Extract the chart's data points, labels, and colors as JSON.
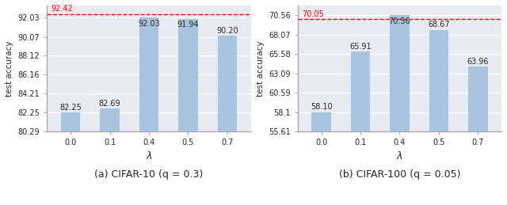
{
  "left": {
    "categories": [
      "0.0",
      "0.1",
      "0.4",
      "0.5",
      "0.7"
    ],
    "values": [
      82.25,
      82.69,
      92.03,
      91.94,
      90.2
    ],
    "hline": 92.42,
    "hline_label": "92.42",
    "ylim": [
      80.29,
      93.3
    ],
    "yticks": [
      80.29,
      82.25,
      84.21,
      86.16,
      88.12,
      90.07,
      92.03
    ],
    "ylabel": "test accuracy",
    "xlabel": "λ",
    "title": "(a) CIFAR-10 (q = 0.3)",
    "bar_color": "#a8c4e0",
    "bar_labels": [
      "82.25",
      "82.69",
      "92.03",
      "91.94",
      "90.20"
    ],
    "bar_label_inside": [
      false,
      false,
      true,
      true,
      false
    ]
  },
  "right": {
    "categories": [
      "0.0",
      "0.1",
      "0.4",
      "0.5",
      "0.7"
    ],
    "values": [
      58.1,
      65.91,
      70.56,
      68.67,
      63.96
    ],
    "hline": 70.05,
    "hline_label": "70.05",
    "ylim": [
      55.61,
      71.8
    ],
    "yticks": [
      55.61,
      58.1,
      60.59,
      63.09,
      65.58,
      68.07,
      70.56
    ],
    "ylabel": "test accuracy",
    "xlabel": "λ",
    "title": "(b) CIFAR-100 (q = 0.05)",
    "bar_color": "#a8c4e0",
    "bar_labels": [
      "58.10",
      "65.91",
      "70.56",
      "68.67",
      "63.96"
    ],
    "bar_label_inside": [
      false,
      false,
      true,
      false,
      false
    ]
  },
  "bg_color": "#eaeaf2",
  "grid_color": "#ffffff",
  "label_fontsize": 7,
  "tick_fontsize": 7,
  "ylabel_fontsize": 7.5,
  "xlabel_fontsize": 9,
  "title_fontsize": 9
}
